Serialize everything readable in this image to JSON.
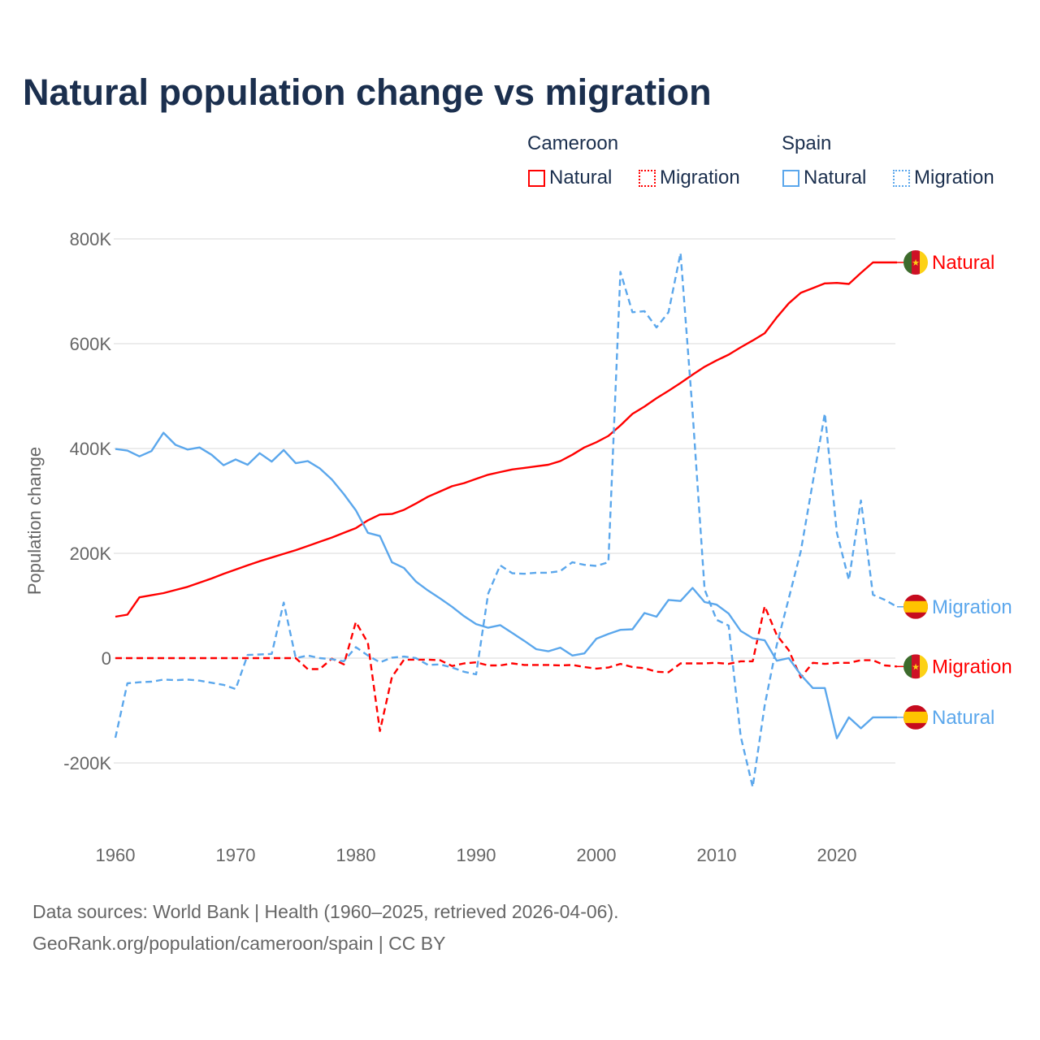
{
  "title": "Natural population change vs migration",
  "legend": {
    "groups": [
      {
        "name": "Cameroon",
        "items": [
          {
            "label": "Natural",
            "style": "solid"
          },
          {
            "label": "Migration",
            "style": "dotted"
          }
        ],
        "color": "#ff0000"
      },
      {
        "name": "Spain",
        "items": [
          {
            "label": "Natural",
            "style": "solid"
          },
          {
            "label": "Migration",
            "style": "dotted"
          }
        ],
        "color": "#5ba7ec"
      }
    ]
  },
  "footer": {
    "line1": "Data sources: World Bank | Health (1960–2025, retrieved 2026-04-06).",
    "line2": "GeoRank.org/population/cameroon/spain | CC BY"
  },
  "chart_data": {
    "type": "line",
    "title": "Natural population change vs migration",
    "xlabel": "",
    "ylabel": "Population change",
    "x_start": 1960,
    "x_end": 2025,
    "xlim": [
      1960,
      2025
    ],
    "ylim": [
      -300000,
      800000
    ],
    "x_ticks": [
      1960,
      1970,
      1980,
      1990,
      2000,
      2010,
      2020
    ],
    "y_ticks": [
      {
        "value": 800000,
        "label": "800K"
      },
      {
        "value": 600000,
        "label": "600K"
      },
      {
        "value": 400000,
        "label": "400K"
      },
      {
        "value": 200000,
        "label": "200K"
      },
      {
        "value": 0,
        "label": "0"
      },
      {
        "value": -200000,
        "label": "-200K"
      }
    ],
    "grid": true,
    "legend_position": "top-right",
    "units": "thousands",
    "series": [
      {
        "name": "Cameroon Natural",
        "end_label": "Natural",
        "country": "Cameroon",
        "color": "#ff0000",
        "dashed": false,
        "values": [
          79,
          83,
          116,
          120,
          124,
          130,
          136,
          144,
          152,
          161,
          169,
          177,
          185,
          192,
          199,
          206,
          214,
          222,
          230,
          239,
          248,
          263,
          274,
          275,
          283,
          295,
          308,
          318,
          328,
          334,
          342,
          350,
          355,
          360,
          363,
          366,
          369,
          376,
          388,
          402,
          412,
          424,
          444,
          466,
          480,
          496,
          510,
          525,
          541,
          556,
          568,
          579,
          593,
          606,
          620,
          650,
          677,
          697,
          706,
          715,
          716,
          714,
          735,
          755,
          755,
          755
        ]
      },
      {
        "name": "Cameroon Migration",
        "end_label": "Migration",
        "country": "Cameroon",
        "color": "#ff0000",
        "dashed": true,
        "values": [
          0,
          0,
          0,
          0,
          0,
          0,
          0,
          0,
          0,
          0,
          0,
          0,
          0,
          0,
          0,
          0,
          -21,
          -21,
          -1,
          -12,
          69,
          29,
          -139,
          -36,
          -3,
          -3,
          -3,
          -4,
          -15,
          -10,
          -8,
          -14,
          -14,
          -10,
          -13,
          -13,
          -13,
          -14,
          -13,
          -17,
          -20,
          -18,
          -11,
          -17,
          -19,
          -26,
          -27,
          -10,
          -10,
          -10,
          -9,
          -11,
          -6,
          -6,
          99,
          44,
          15,
          -37,
          -9,
          -11,
          -9,
          -9,
          -4,
          -4,
          -14,
          -16
        ]
      },
      {
        "name": "Spain Natural",
        "end_label": "Natural",
        "country": "Spain",
        "color": "#5ba7ec",
        "dashed": false,
        "values": [
          399,
          396,
          385,
          395,
          430,
          407,
          398,
          402,
          388,
          368,
          379,
          369,
          391,
          375,
          397,
          372,
          376,
          362,
          341,
          313,
          282,
          239,
          233,
          183,
          172,
          146,
          129,
          114,
          98,
          80,
          65,
          58,
          63,
          48,
          33,
          17,
          13,
          20,
          5,
          9,
          37,
          46,
          54,
          55,
          86,
          79,
          111,
          109,
          134,
          107,
          102,
          85,
          52,
          38,
          34,
          -5,
          0,
          -32,
          -57,
          -57,
          -153,
          -113,
          -134,
          -113,
          -113,
          -113
        ]
      },
      {
        "name": "Spain Migration",
        "end_label": "Migration",
        "country": "Spain",
        "color": "#5ba7ec",
        "dashed": true,
        "values": [
          -152,
          -48,
          -46,
          -45,
          -41,
          -42,
          -41,
          -43,
          -47,
          -51,
          -59,
          6,
          7,
          8,
          106,
          0,
          5,
          0,
          -2,
          -6,
          21,
          5,
          -8,
          1,
          3,
          0,
          -13,
          -12,
          -18,
          -26,
          -31,
          123,
          177,
          162,
          161,
          163,
          163,
          166,
          183,
          178,
          176,
          183,
          737,
          660,
          662,
          631,
          660,
          773,
          470,
          131,
          73,
          62,
          -149,
          -246,
          -90,
          25,
          114,
          204,
          336,
          467,
          239,
          149,
          301,
          121,
          111,
          98
        ]
      }
    ]
  }
}
